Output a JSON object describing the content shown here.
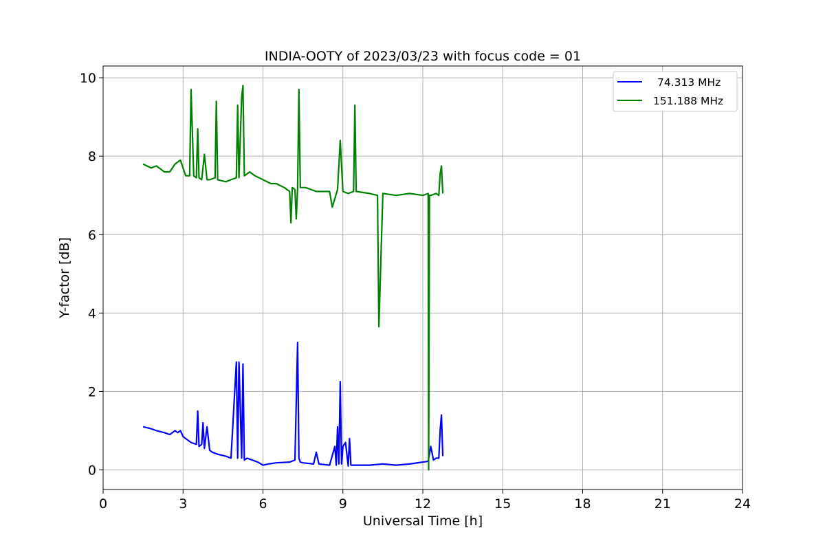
{
  "chart_data": {
    "type": "line",
    "title": "INDIA-OOTY of 2023/03/23 with focus code = 01",
    "xlabel": "Universal Time [h]",
    "ylabel": "Y-factor [dB]",
    "xlim": [
      0,
      24
    ],
    "ylim": [
      -0.5,
      10.3
    ],
    "xticks": [
      0,
      3,
      6,
      9,
      12,
      15,
      18,
      21,
      24
    ],
    "yticks": [
      0,
      2,
      4,
      6,
      8,
      10
    ],
    "grid": true,
    "legend_position": "top-right",
    "series": [
      {
        "name": "74.313 MHz",
        "color": "#0000ff",
        "x": [
          1.5,
          1.8,
          2.0,
          2.3,
          2.5,
          2.7,
          2.8,
          2.9,
          3.0,
          3.1,
          3.3,
          3.5,
          3.55,
          3.6,
          3.7,
          3.75,
          3.8,
          3.9,
          4.0,
          4.1,
          4.3,
          4.6,
          4.8,
          5.0,
          5.05,
          5.1,
          5.2,
          5.25,
          5.3,
          5.4,
          5.6,
          5.8,
          6.0,
          6.2,
          6.5,
          7.0,
          7.2,
          7.3,
          7.35,
          7.4,
          7.5,
          7.9,
          8.0,
          8.1,
          8.5,
          8.7,
          8.75,
          8.8,
          8.85,
          8.9,
          8.95,
          9.0,
          9.1,
          9.2,
          9.25,
          9.3,
          9.5,
          10.0,
          10.5,
          11.0,
          11.5,
          12.0,
          12.2,
          12.3,
          12.4,
          12.5,
          12.6,
          12.65,
          12.7,
          12.75
        ],
        "y": [
          1.1,
          1.05,
          1.0,
          0.95,
          0.9,
          1.0,
          0.95,
          1.0,
          0.85,
          0.8,
          0.7,
          0.65,
          1.5,
          0.6,
          0.65,
          1.2,
          0.55,
          1.1,
          0.5,
          0.45,
          0.4,
          0.35,
          0.3,
          2.75,
          0.3,
          2.75,
          0.3,
          2.7,
          0.25,
          0.3,
          0.25,
          0.2,
          0.12,
          0.15,
          0.18,
          0.2,
          0.25,
          3.25,
          0.3,
          0.2,
          0.18,
          0.15,
          0.45,
          0.15,
          0.12,
          0.6,
          0.12,
          1.1,
          0.15,
          2.25,
          0.15,
          0.6,
          0.7,
          0.1,
          0.8,
          0.12,
          0.12,
          0.12,
          0.15,
          0.12,
          0.15,
          0.2,
          0.22,
          0.6,
          0.25,
          0.3,
          0.3,
          1.0,
          1.4,
          0.35
        ]
      },
      {
        "name": "151.188 MHz",
        "color": "#008000",
        "x": [
          1.5,
          1.8,
          2.0,
          2.3,
          2.5,
          2.7,
          2.9,
          3.0,
          3.1,
          3.25,
          3.3,
          3.4,
          3.5,
          3.55,
          3.6,
          3.7,
          3.8,
          3.9,
          4.0,
          4.2,
          4.25,
          4.3,
          4.6,
          4.8,
          5.0,
          5.05,
          5.1,
          5.2,
          5.25,
          5.3,
          5.5,
          5.7,
          6.0,
          6.3,
          6.5,
          6.8,
          7.0,
          7.05,
          7.1,
          7.2,
          7.25,
          7.3,
          7.35,
          7.4,
          7.6,
          8.0,
          8.5,
          8.6,
          8.8,
          8.9,
          9.0,
          9.2,
          9.4,
          9.45,
          9.5,
          10.0,
          10.3,
          10.35,
          10.5,
          11.0,
          11.5,
          12.0,
          12.2,
          12.22,
          12.25,
          12.3,
          12.5,
          12.6,
          12.65,
          12.7,
          12.75
        ],
        "y": [
          7.8,
          7.7,
          7.75,
          7.6,
          7.6,
          7.8,
          7.9,
          7.7,
          7.5,
          7.5,
          9.7,
          7.5,
          7.45,
          8.7,
          7.45,
          7.4,
          8.05,
          7.4,
          7.4,
          7.45,
          9.4,
          7.4,
          7.35,
          7.4,
          7.45,
          9.3,
          7.45,
          9.5,
          9.8,
          7.5,
          7.6,
          7.5,
          7.4,
          7.3,
          7.3,
          7.2,
          7.1,
          6.3,
          7.2,
          7.15,
          6.4,
          7.2,
          9.7,
          7.2,
          7.2,
          7.1,
          7.1,
          6.7,
          7.15,
          8.4,
          7.1,
          7.05,
          7.1,
          9.3,
          7.1,
          7.05,
          7.0,
          3.65,
          7.05,
          7.0,
          7.05,
          7.0,
          7.05,
          0.0,
          7.0,
          7.0,
          7.05,
          7.0,
          7.55,
          7.75,
          7.05
        ]
      }
    ]
  }
}
